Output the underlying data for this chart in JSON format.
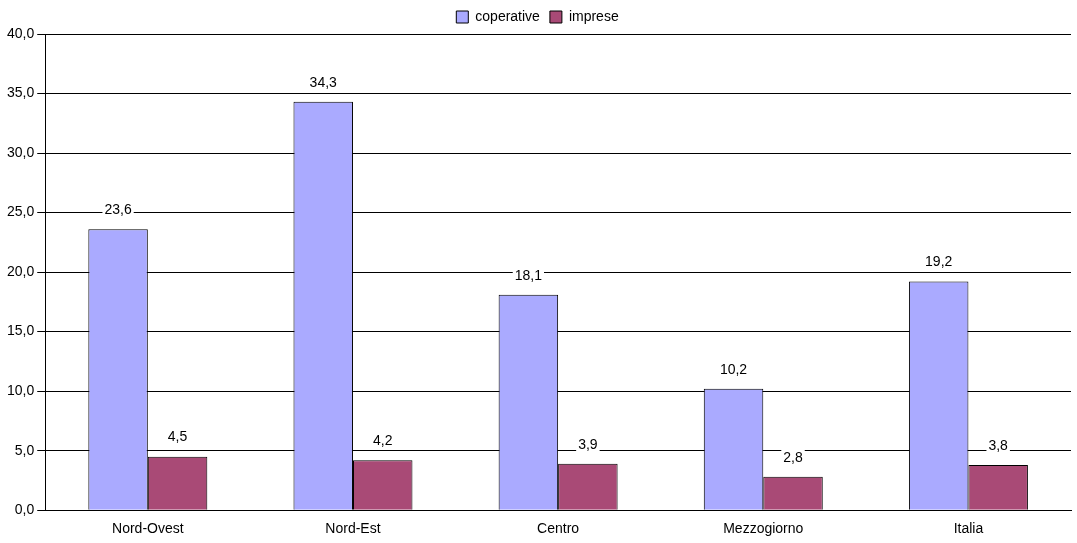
{
  "chart_data": {
    "type": "bar",
    "categories": [
      "Nord-Ovest",
      "Nord-Est",
      "Centro",
      "Mezzogiorno",
      "Italia"
    ],
    "series": [
      {
        "name": "coperative",
        "color": "#aaaaff",
        "values": [
          23.6,
          34.3,
          18.1,
          10.2,
          19.2
        ],
        "value_labels": [
          "23,6",
          "34,3",
          "18,1",
          "10,2",
          "19,2"
        ]
      },
      {
        "name": "imprese",
        "color": "#a94a76",
        "values": [
          4.5,
          4.2,
          3.9,
          2.8,
          3.8
        ],
        "value_labels": [
          "4,5",
          "4,2",
          "3,9",
          "2,8",
          "3,8"
        ]
      }
    ],
    "ylim": [
      0,
      40
    ],
    "yticks": [
      {
        "value": 0,
        "label": "0,0"
      },
      {
        "value": 5,
        "label": "5,0"
      },
      {
        "value": 10,
        "label": "10,0"
      },
      {
        "value": 15,
        "label": "15,0"
      },
      {
        "value": 20,
        "label": "20,0"
      },
      {
        "value": 25,
        "label": "25,0"
      },
      {
        "value": 30,
        "label": "30,0"
      },
      {
        "value": 35,
        "label": "35,0"
      },
      {
        "value": 40,
        "label": "40,0"
      }
    ],
    "grid": "y",
    "legend": "top"
  }
}
